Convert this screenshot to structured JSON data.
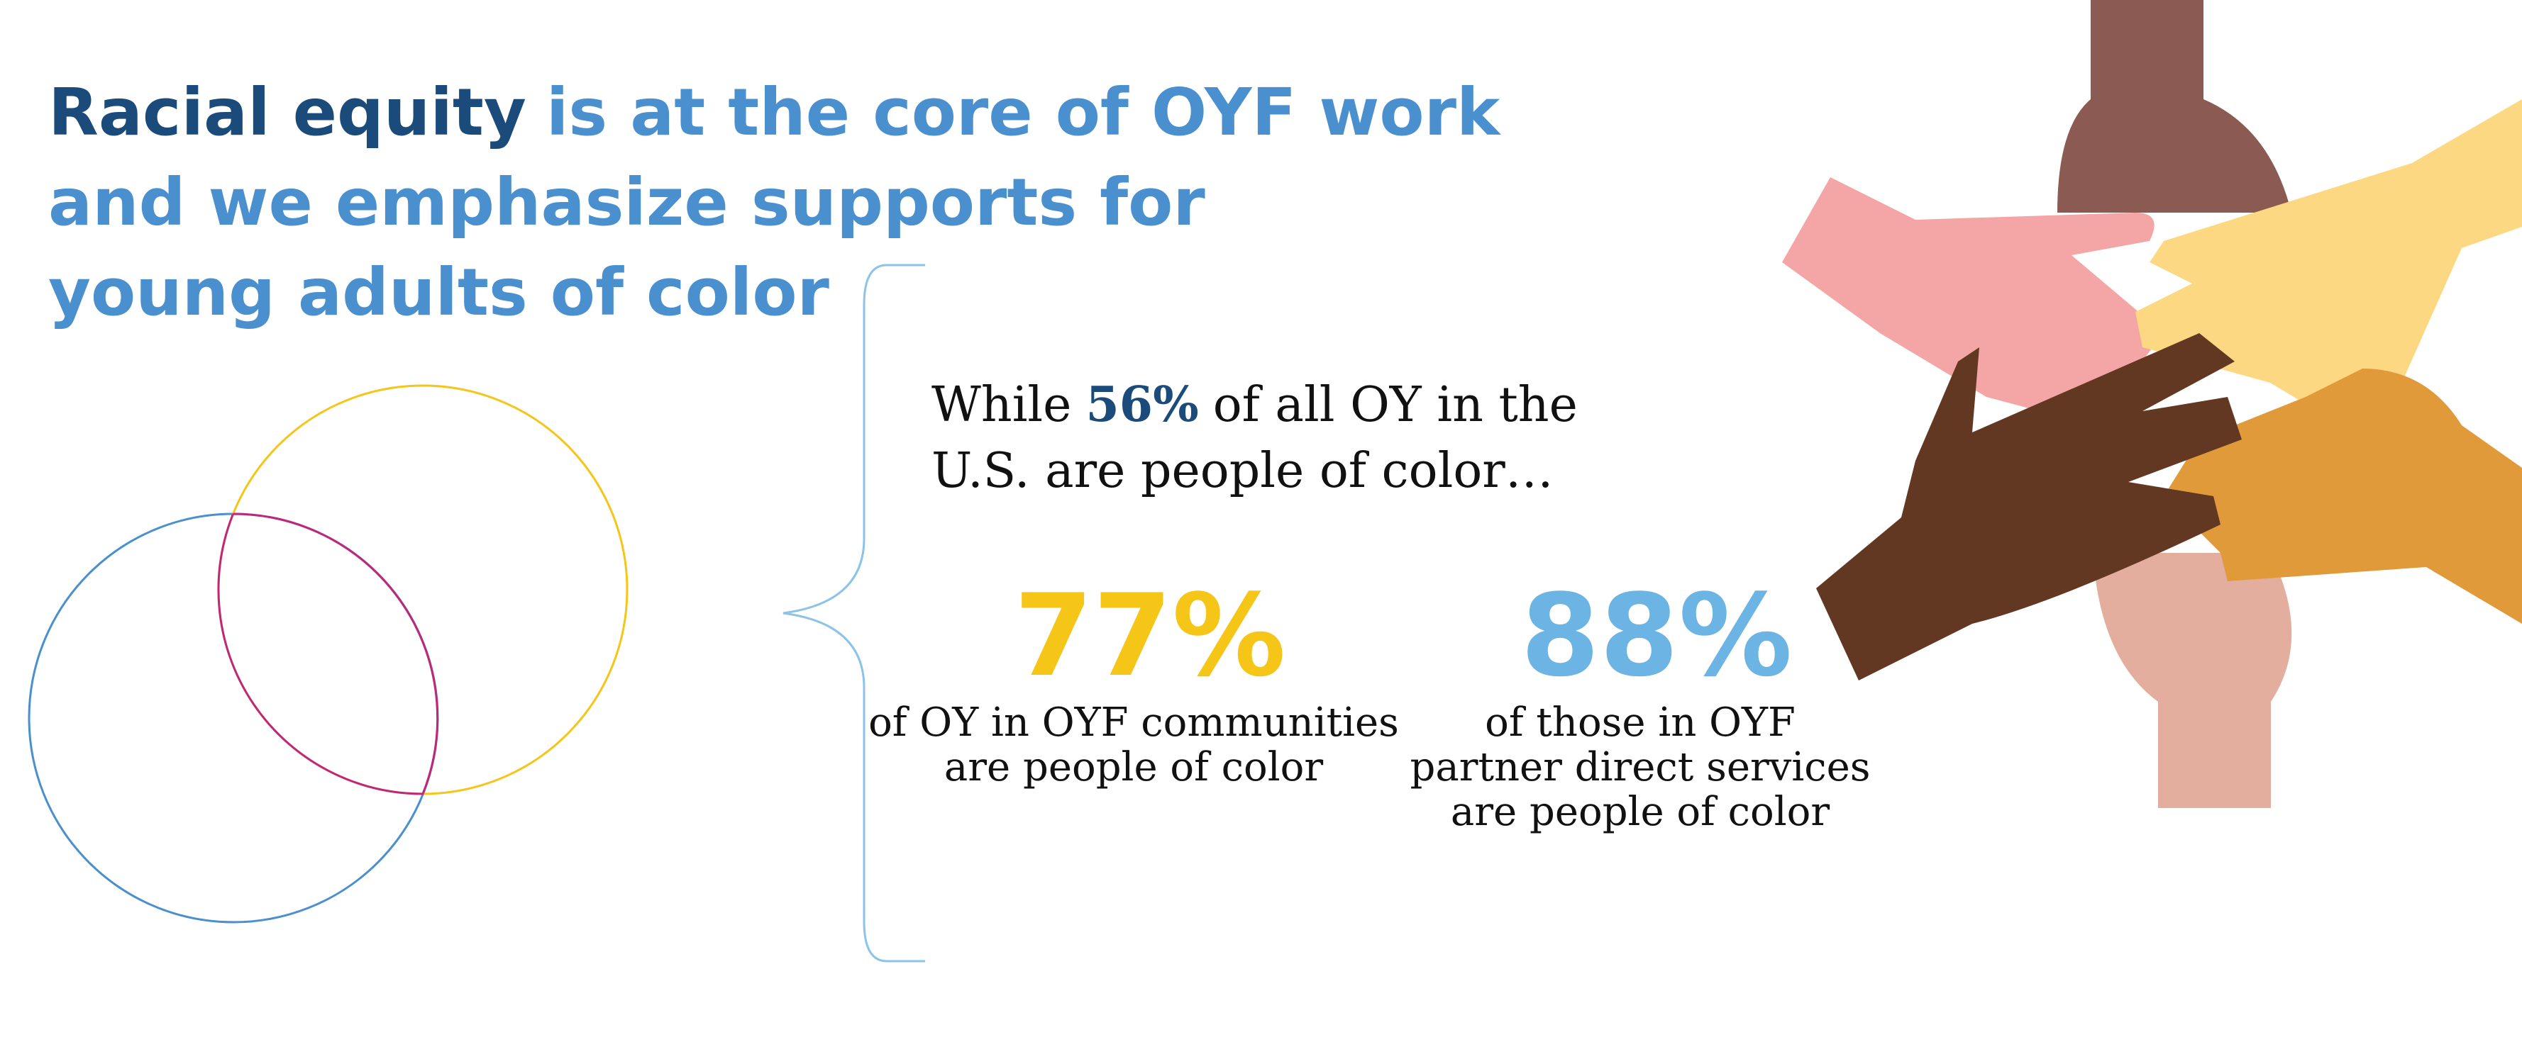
{
  "title": {
    "highlight": "Racial equity",
    "rest": "is at the core of OYF work",
    "line2": "and we emphasize supports for",
    "line3": "young adults of color"
  },
  "intro": {
    "before": "While",
    "highlight": "56%",
    "after": "of all OY in the",
    "line2": "U.S. are people of color…"
  },
  "stats": [
    {
      "value": "77%",
      "lines": [
        "of OY in OYF communities",
        "are people of color"
      ]
    },
    {
      "value": "88%",
      "lines": [
        "of those in OYF",
        "partner direct services",
        "are people of color"
      ]
    }
  ]
}
